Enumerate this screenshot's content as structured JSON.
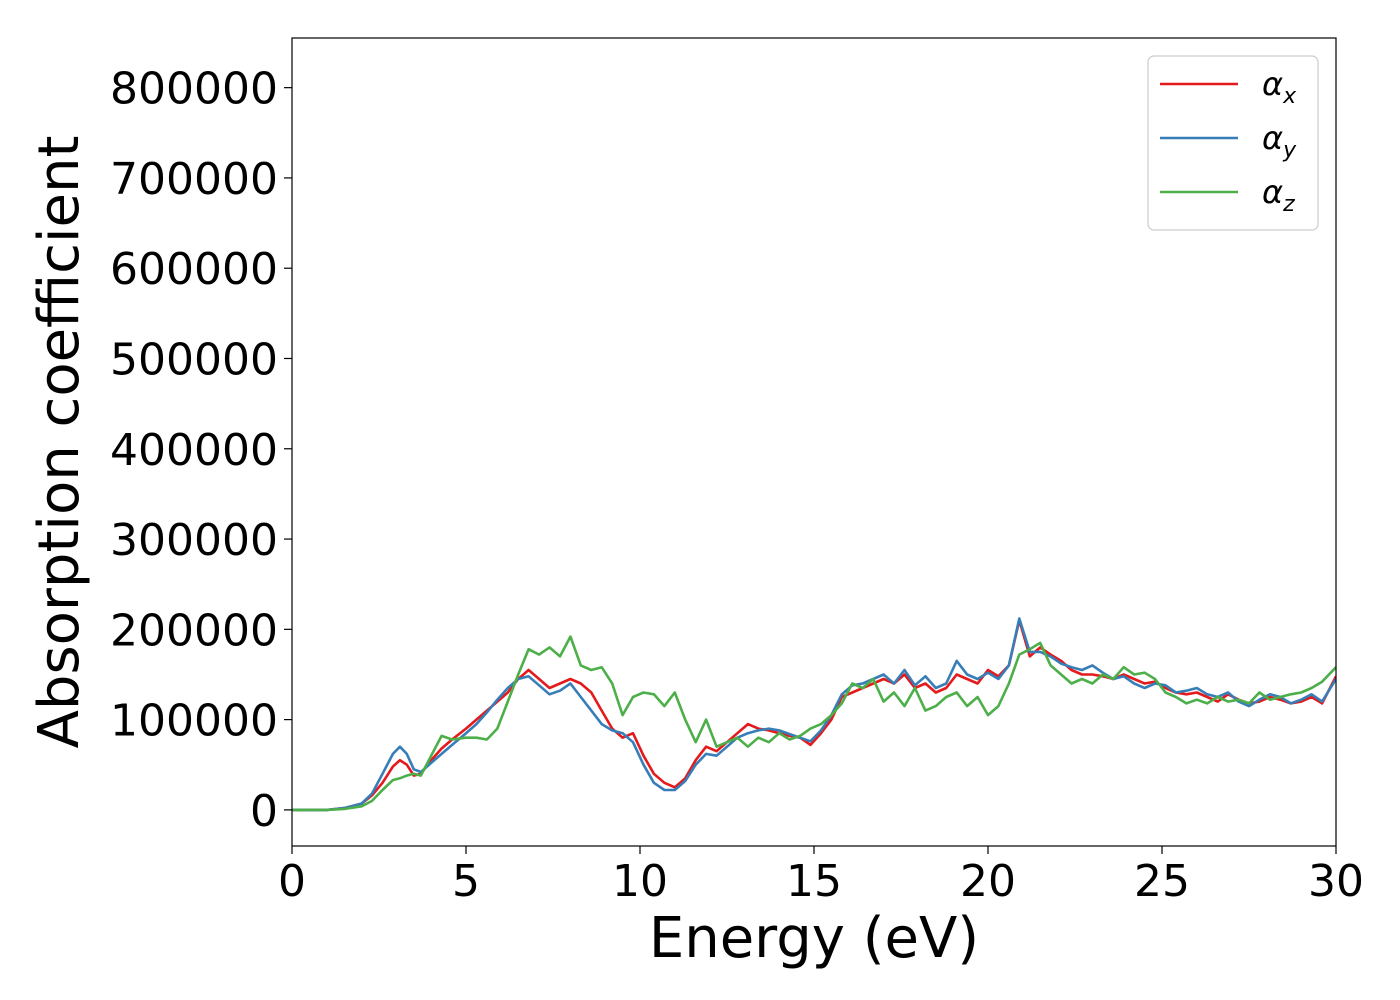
{
  "chart_data": {
    "type": "line",
    "xlabel": "Energy (eV)",
    "ylabel": "Absorption coefficient",
    "xlim": [
      0,
      30
    ],
    "ylim": [
      -40000,
      855000
    ],
    "xticks": [
      0,
      5,
      10,
      15,
      20,
      25,
      30
    ],
    "xtick_labels": [
      "0",
      "5",
      "10",
      "15",
      "20",
      "25",
      "30"
    ],
    "yticks": [
      0,
      100000,
      200000,
      300000,
      400000,
      500000,
      600000,
      700000,
      800000
    ],
    "ytick_labels": [
      "0",
      "100000",
      "200000",
      "300000",
      "400000",
      "500000",
      "600000",
      "700000",
      "800000"
    ],
    "grid": false,
    "legend_position": "top-right",
    "series": [
      {
        "name": "α_x",
        "legend_main": "α",
        "legend_sub": "x",
        "color": "#e41a1c",
        "x": [
          0,
          1,
          1.5,
          2,
          2.3,
          2.6,
          2.9,
          3.1,
          3.3,
          3.5,
          3.7,
          4,
          4.3,
          4.6,
          5,
          5.3,
          5.6,
          5.9,
          6.2,
          6.5,
          6.8,
          7.1,
          7.4,
          7.7,
          8,
          8.3,
          8.6,
          8.9,
          9.2,
          9.5,
          9.8,
          10.1,
          10.4,
          10.7,
          11,
          11.3,
          11.6,
          11.9,
          12.2,
          12.5,
          12.8,
          13.1,
          13.4,
          13.7,
          14,
          14.3,
          14.6,
          14.9,
          15.2,
          15.5,
          15.8,
          16.1,
          16.4,
          16.7,
          17,
          17.3,
          17.6,
          17.9,
          18.2,
          18.5,
          18.8,
          19.1,
          19.4,
          19.7,
          20,
          20.3,
          20.6,
          20.9,
          21.2,
          21.5,
          21.8,
          22.1,
          22.4,
          22.7,
          23,
          23.3,
          23.6,
          23.9,
          24.2,
          24.5,
          24.8,
          25.1,
          25.4,
          25.7,
          26,
          26.3,
          26.6,
          26.9,
          27.2,
          27.5,
          27.8,
          28.1,
          28.4,
          28.7,
          29,
          29.3,
          29.6,
          30
        ],
        "y": [
          0,
          0,
          2000,
          7000,
          16000,
          30000,
          48000,
          55000,
          50000,
          38000,
          40000,
          55000,
          68000,
          78000,
          90000,
          100000,
          110000,
          120000,
          130000,
          145000,
          155000,
          145000,
          135000,
          140000,
          145000,
          140000,
          130000,
          110000,
          90000,
          80000,
          85000,
          60000,
          40000,
          30000,
          25000,
          35000,
          55000,
          70000,
          65000,
          75000,
          85000,
          95000,
          90000,
          88000,
          85000,
          82000,
          80000,
          72000,
          85000,
          100000,
          125000,
          130000,
          135000,
          140000,
          145000,
          140000,
          150000,
          135000,
          140000,
          130000,
          135000,
          150000,
          145000,
          140000,
          155000,
          148000,
          160000,
          210000,
          170000,
          180000,
          172000,
          165000,
          155000,
          150000,
          150000,
          148000,
          145000,
          150000,
          145000,
          140000,
          142000,
          135000,
          130000,
          128000,
          130000,
          125000,
          120000,
          128000,
          122000,
          118000,
          120000,
          125000,
          122000,
          118000,
          120000,
          125000,
          118000,
          148000
        ]
      },
      {
        "name": "α_y",
        "legend_main": "α",
        "legend_sub": "y",
        "color": "#377eb8",
        "x": [
          0,
          1,
          1.5,
          2,
          2.3,
          2.6,
          2.9,
          3.1,
          3.3,
          3.5,
          3.7,
          4,
          4.3,
          4.6,
          5,
          5.3,
          5.6,
          5.9,
          6.2,
          6.5,
          6.8,
          7.1,
          7.4,
          7.7,
          8,
          8.3,
          8.6,
          8.9,
          9.2,
          9.5,
          9.8,
          10.1,
          10.4,
          10.7,
          11,
          11.3,
          11.6,
          11.9,
          12.2,
          12.5,
          12.8,
          13.1,
          13.4,
          13.7,
          14,
          14.3,
          14.6,
          14.9,
          15.2,
          15.5,
          15.8,
          16.1,
          16.4,
          16.7,
          17,
          17.3,
          17.6,
          17.9,
          18.2,
          18.5,
          18.8,
          19.1,
          19.4,
          19.7,
          20,
          20.3,
          20.6,
          20.9,
          21.2,
          21.5,
          21.8,
          22.1,
          22.4,
          22.7,
          23,
          23.3,
          23.6,
          23.9,
          24.2,
          24.5,
          24.8,
          25.1,
          25.4,
          25.7,
          26,
          26.3,
          26.6,
          26.9,
          27.2,
          27.5,
          27.8,
          28.1,
          28.4,
          28.7,
          29,
          29.3,
          29.6,
          30
        ],
        "y": [
          0,
          0,
          2000,
          7000,
          18000,
          40000,
          62000,
          70000,
          62000,
          45000,
          42000,
          52000,
          62000,
          72000,
          85000,
          95000,
          108000,
          122000,
          135000,
          145000,
          148000,
          138000,
          128000,
          132000,
          140000,
          125000,
          110000,
          95000,
          88000,
          85000,
          75000,
          50000,
          30000,
          22000,
          22000,
          32000,
          50000,
          62000,
          60000,
          70000,
          80000,
          85000,
          88000,
          90000,
          88000,
          84000,
          80000,
          76000,
          88000,
          105000,
          128000,
          138000,
          140000,
          145000,
          150000,
          140000,
          155000,
          138000,
          148000,
          135000,
          140000,
          165000,
          150000,
          145000,
          152000,
          145000,
          160000,
          212000,
          175000,
          175000,
          170000,
          162000,
          158000,
          155000,
          160000,
          152000,
          145000,
          148000,
          140000,
          135000,
          140000,
          138000,
          130000,
          132000,
          135000,
          128000,
          125000,
          130000,
          120000,
          115000,
          122000,
          128000,
          125000,
          118000,
          122000,
          128000,
          120000,
          145000
        ]
      },
      {
        "name": "α_z",
        "legend_main": "α",
        "legend_sub": "z",
        "color": "#4daf4a",
        "x": [
          0,
          1,
          1.5,
          2,
          2.3,
          2.6,
          2.9,
          3.1,
          3.3,
          3.5,
          3.7,
          4,
          4.3,
          4.6,
          5,
          5.3,
          5.6,
          5.9,
          6.2,
          6.5,
          6.8,
          7.1,
          7.4,
          7.7,
          8,
          8.3,
          8.6,
          8.9,
          9.2,
          9.5,
          9.8,
          10.1,
          10.4,
          10.7,
          11,
          11.3,
          11.6,
          11.9,
          12.2,
          12.5,
          12.8,
          13.1,
          13.4,
          13.7,
          14,
          14.3,
          14.6,
          14.9,
          15.2,
          15.5,
          15.8,
          16.1,
          16.4,
          16.7,
          17,
          17.3,
          17.6,
          17.9,
          18.2,
          18.5,
          18.8,
          19.1,
          19.4,
          19.7,
          20,
          20.3,
          20.6,
          20.9,
          21.2,
          21.5,
          21.8,
          22.1,
          22.4,
          22.7,
          23,
          23.3,
          23.6,
          23.9,
          24.2,
          24.5,
          24.8,
          25.1,
          25.4,
          25.7,
          26,
          26.3,
          26.6,
          26.9,
          27.2,
          27.5,
          27.8,
          28.1,
          28.4,
          28.7,
          29,
          29.3,
          29.6,
          30
        ],
        "y": [
          0,
          0,
          1000,
          4000,
          10000,
          22000,
          33000,
          35000,
          38000,
          40000,
          38000,
          60000,
          82000,
          78000,
          80000,
          80000,
          78000,
          90000,
          120000,
          150000,
          178000,
          172000,
          180000,
          170000,
          192000,
          160000,
          155000,
          158000,
          140000,
          105000,
          125000,
          130000,
          128000,
          115000,
          130000,
          100000,
          75000,
          100000,
          70000,
          75000,
          80000,
          70000,
          80000,
          75000,
          85000,
          78000,
          82000,
          90000,
          95000,
          105000,
          118000,
          140000,
          135000,
          145000,
          120000,
          130000,
          115000,
          135000,
          110000,
          115000,
          125000,
          130000,
          115000,
          125000,
          105000,
          115000,
          140000,
          172000,
          178000,
          185000,
          160000,
          150000,
          140000,
          145000,
          140000,
          150000,
          145000,
          158000,
          150000,
          152000,
          145000,
          130000,
          125000,
          118000,
          122000,
          118000,
          125000,
          120000,
          122000,
          118000,
          130000,
          122000,
          125000,
          128000,
          130000,
          135000,
          142000,
          158000
        ]
      }
    ]
  }
}
